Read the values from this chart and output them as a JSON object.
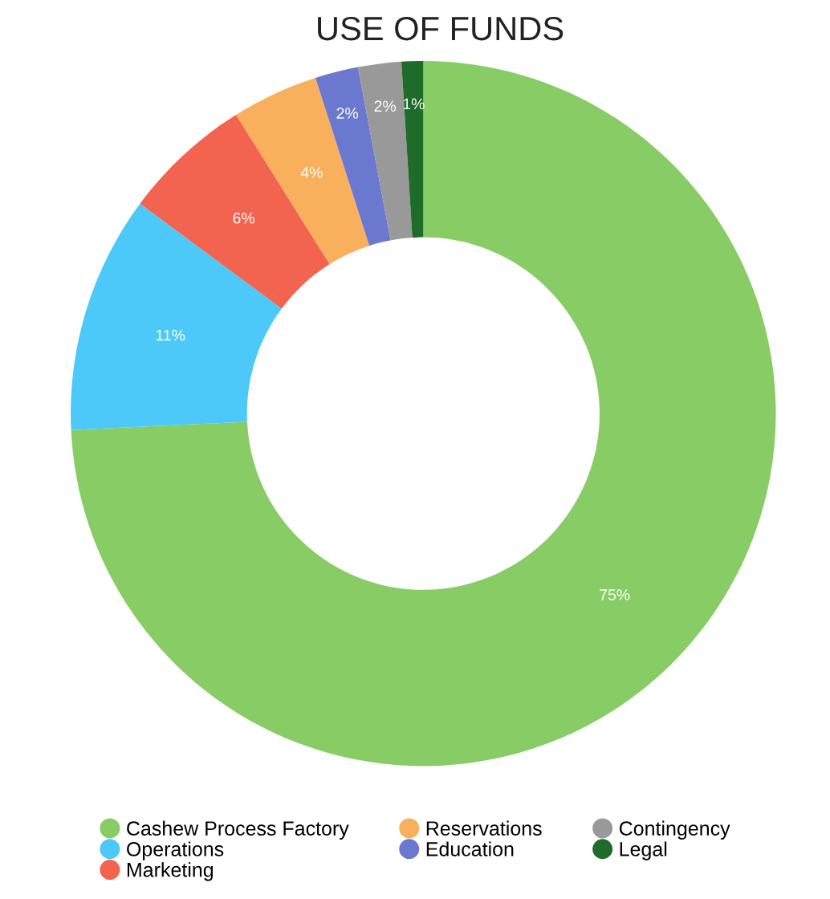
{
  "chart_data": {
    "type": "donut",
    "title": "USE OF FUNDS",
    "categories": [
      "Cashew Process Factory",
      "Operations",
      "Marketing",
      "Reservations",
      "Education",
      "Contingency",
      "Legal"
    ],
    "values": [
      75,
      11,
      6,
      4,
      2,
      2,
      1
    ],
    "value_labels": [
      "75%",
      "11%",
      "6%",
      "4%",
      "2%",
      "2%",
      "1%"
    ],
    "colors": [
      "#88cc66",
      "#4cc9f8",
      "#f2644f",
      "#f9b05c",
      "#6b78d0",
      "#999999",
      "#1e6b2a"
    ],
    "legend": "bottom"
  }
}
